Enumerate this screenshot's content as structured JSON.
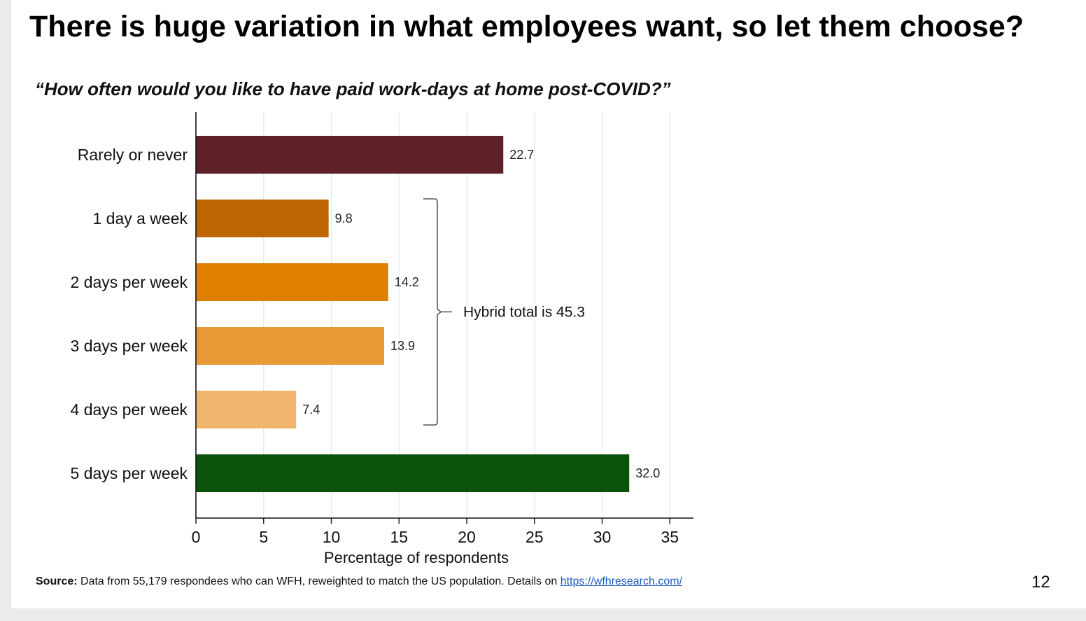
{
  "slide": {
    "title": "There is huge variation in what employees want, so let them choose?",
    "subtitle": "“How often would you like to have paid work-days at home post-COVID?”",
    "page_number": "12"
  },
  "footer": {
    "source_label": "Source:",
    "source_text": " Data from 55,179 respondees who can WFH, reweighted to match the US population. Details on ",
    "source_link": "https://wfhresearch.com/"
  },
  "chart_data": {
    "type": "bar",
    "orientation": "horizontal",
    "categories": [
      "Rarely or never",
      "1 day a week",
      "2 days per week",
      "3 days per week",
      "4 days per week",
      "5 days per week"
    ],
    "values": [
      22.7,
      9.8,
      14.2,
      13.9,
      7.4,
      32.0
    ],
    "value_labels": [
      "22.7",
      "9.8",
      "14.2",
      "13.9",
      "7.4",
      "32.0"
    ],
    "colors": [
      "#5f2028",
      "#bd6500",
      "#e07e00",
      "#e89a36",
      "#f0b46c",
      "#0b520b"
    ],
    "xlabel": "Percentage of respondents",
    "ylabel": "",
    "xlim": [
      0,
      37
    ],
    "xticks": [
      0,
      5,
      10,
      15,
      20,
      25,
      30,
      35
    ],
    "grid": true,
    "annotation": {
      "text": "Hybrid total is 45.3",
      "spans": [
        "1 day a week",
        "4 days per week"
      ]
    }
  }
}
